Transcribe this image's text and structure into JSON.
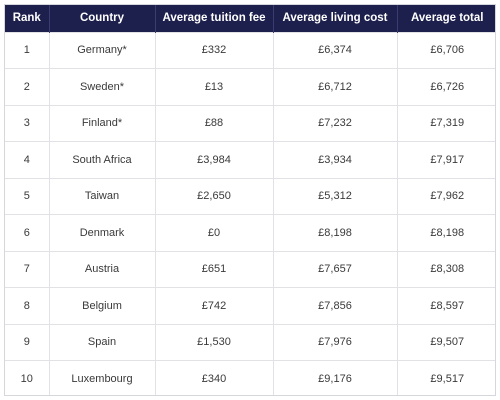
{
  "table": {
    "headers": [
      "Rank",
      "Country",
      "Average tuition fee",
      "Average living cost",
      "Average total"
    ],
    "rows": [
      [
        "1",
        "Germany*",
        "£332",
        "£6,374",
        "£6,706"
      ],
      [
        "2",
        "Sweden*",
        "£13",
        "£6,712",
        "£6,726"
      ],
      [
        "3",
        "Finland*",
        "£88",
        "£7,232",
        "£7,319"
      ],
      [
        "4",
        "South Africa",
        "£3,984",
        "£3,934",
        "£7,917"
      ],
      [
        "5",
        "Taiwan",
        "£2,650",
        "£5,312",
        "£7,962"
      ],
      [
        "6",
        "Denmark",
        "£0",
        "£8,198",
        "£8,198"
      ],
      [
        "7",
        "Austria",
        "£651",
        "£7,657",
        "£8,308"
      ],
      [
        "8",
        "Belgium",
        "£742",
        "£7,856",
        "£8,597"
      ],
      [
        "9",
        "Spain",
        "£1,530",
        "£7,976",
        "£9,507"
      ],
      [
        "10",
        "Luxembourg",
        "£340",
        "£9,176",
        "£9,517"
      ]
    ]
  },
  "colors": {
    "header_bg": "#1d1f4d",
    "header_text": "#ffffff",
    "grid": "#e1e1e6"
  }
}
